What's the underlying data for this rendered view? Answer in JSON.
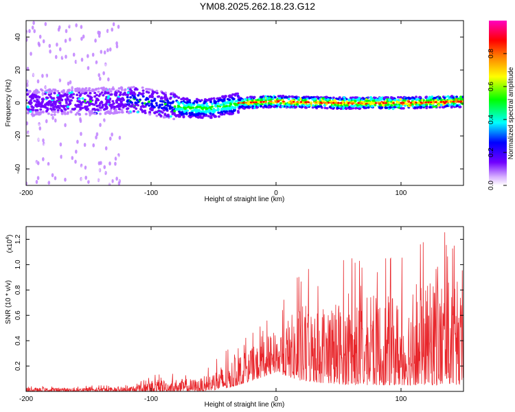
{
  "title": "YM08.2025.262.18.23.G12",
  "chart_data": [
    {
      "type": "heatmap",
      "title": "YM08.2025.262.18.23.G12",
      "xlabel": "Height of straight line (km)",
      "ylabel": "Frequency (Hz)",
      "xlim": [
        -200,
        150
      ],
      "ylim": [
        -50,
        50
      ],
      "xticks": [
        -200,
        -100,
        0,
        100
      ],
      "yticks": [
        -40,
        -20,
        0,
        20,
        40
      ],
      "ridge_center_hz": [
        {
          "x": -200,
          "y": 0
        },
        {
          "x": -150,
          "y": 1
        },
        {
          "x": -110,
          "y": 2
        },
        {
          "x": -90,
          "y": -1
        },
        {
          "x": -70,
          "y": -3
        },
        {
          "x": -50,
          "y": -3
        },
        {
          "x": -30,
          "y": 0
        },
        {
          "x": 0,
          "y": 1
        },
        {
          "x": 50,
          "y": 0
        },
        {
          "x": 100,
          "y": 0
        },
        {
          "x": 150,
          "y": 1
        }
      ],
      "colorbar": {
        "label": "Normalized spectral amplitude",
        "range": [
          0,
          1
        ],
        "ticks": [
          "0.0",
          "0.2",
          "0.4",
          "0.6",
          "0.8"
        ],
        "colors": [
          "#ffffff",
          "#c080ff",
          "#7000ff",
          "#0000ff",
          "#00ffff",
          "#00ff00",
          "#ffff00",
          "#ff8000",
          "#ff0000",
          "#ff00c0"
        ]
      }
    },
    {
      "type": "line",
      "xlabel": "Height of straight line (km)",
      "ylabel": "SNR (10 * v/v)",
      "y_multiplier_label": "(x10",
      "y_multiplier_exp": "4",
      "xlim": [
        -200,
        150
      ],
      "ylim": [
        0,
        1.3
      ],
      "xticks": [
        -200,
        -100,
        0,
        100
      ],
      "yticks": [
        "0.2",
        "0.4",
        "0.6",
        "0.8",
        "1.0",
        "1.2"
      ],
      "line_color": "#e8252a",
      "envelope": [
        {
          "x": -200,
          "lo": 0.0,
          "hi": 0.04
        },
        {
          "x": -120,
          "lo": 0.0,
          "hi": 0.05
        },
        {
          "x": -100,
          "lo": 0.0,
          "hi": 0.13
        },
        {
          "x": -60,
          "lo": 0.0,
          "hi": 0.15
        },
        {
          "x": -40,
          "lo": 0.02,
          "hi": 0.32
        },
        {
          "x": -20,
          "lo": 0.08,
          "hi": 0.45
        },
        {
          "x": 0,
          "lo": 0.15,
          "hi": 0.62
        },
        {
          "x": 20,
          "lo": 0.08,
          "hi": 0.95
        },
        {
          "x": 60,
          "lo": 0.05,
          "hi": 1.05
        },
        {
          "x": 100,
          "lo": 0.05,
          "hi": 1.05
        },
        {
          "x": 135,
          "lo": 0.05,
          "hi": 1.3
        },
        {
          "x": 150,
          "lo": 0.05,
          "hi": 1.0
        }
      ]
    }
  ]
}
